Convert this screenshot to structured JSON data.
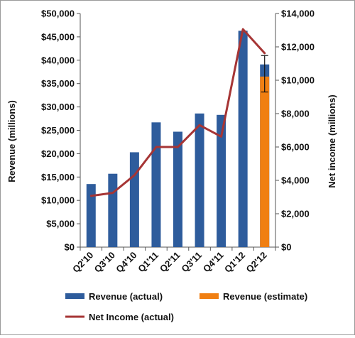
{
  "chart_data": {
    "type": "bar",
    "categories": [
      "Q2'10",
      "Q3'10",
      "Q4'10",
      "Q1'11",
      "Q2'11",
      "Q3'11",
      "Q4'11",
      "Q1'12",
      "Q2'12"
    ],
    "left_axis": {
      "label": "Revenue (millions)",
      "ylim": [
        0,
        50000
      ],
      "ticks": [
        0,
        5000,
        10000,
        15000,
        20000,
        25000,
        30000,
        35000,
        40000,
        45000,
        50000
      ],
      "tick_labels": [
        "$0",
        "$5,000",
        "$10,000",
        "$15,000",
        "$20,000",
        "$25,000",
        "$30,000",
        "$35,000",
        "$40,000",
        "$45,000",
        "$50,000"
      ]
    },
    "right_axis": {
      "label": "Net income (millions)",
      "ylim": [
        0,
        14000
      ],
      "ticks": [
        0,
        2000,
        4000,
        6000,
        8000,
        10000,
        12000,
        14000
      ],
      "tick_labels": [
        "$0",
        "$2,000",
        "$4,000",
        "$6,000",
        "$8,000",
        "$10,000",
        "$12,000",
        "$14,000"
      ]
    },
    "series": [
      {
        "name": "Revenue (actual)",
        "type": "bar",
        "axis": "left",
        "color": "#2e5c9c",
        "values": [
          13500,
          15700,
          20300,
          26700,
          24700,
          28600,
          28300,
          46300,
          39100
        ]
      },
      {
        "name": "Revenue (estimate)",
        "type": "bar",
        "axis": "left",
        "color": "#f07f12",
        "values": [
          null,
          null,
          null,
          null,
          null,
          null,
          null,
          null,
          36500
        ],
        "error_bar": {
          "category": "Q2'12",
          "low": 33200,
          "high": 41000
        }
      },
      {
        "name": "Net Income (actual)",
        "type": "line",
        "axis": "right",
        "color": "#a63535",
        "values": [
          3070,
          3250,
          4310,
          6000,
          6000,
          7310,
          6620,
          13060,
          11620
        ]
      }
    ],
    "legend": {
      "position": "bottom",
      "items": [
        {
          "label": "Revenue (actual)",
          "kind": "bar",
          "color": "#2e5c9c"
        },
        {
          "label": "Revenue (estimate)",
          "kind": "bar",
          "color": "#f07f12"
        },
        {
          "label": "Net Income (actual)",
          "kind": "line",
          "color": "#a63535"
        }
      ]
    },
    "grid": false
  }
}
